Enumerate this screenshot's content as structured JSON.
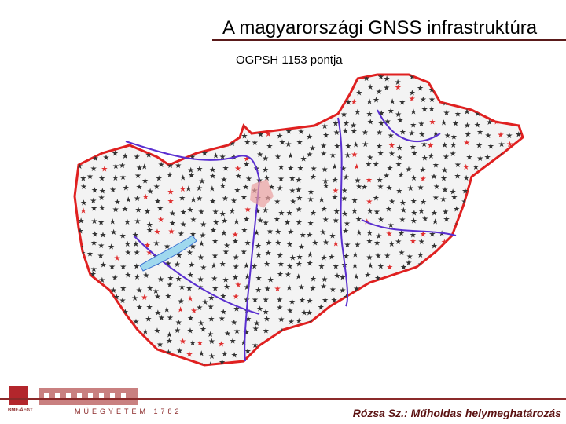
{
  "header": {
    "title": "A magyarországi GNSS infrastruktúra"
  },
  "map": {
    "caption": "OGPSH 1153 pontja"
  },
  "footer": {
    "logo_label": "BME-ÁFGT",
    "logo_caption": "MŰEGYETEM 1782",
    "credit": "Rózsa Sz.: Műholdas helymeghatározás"
  }
}
